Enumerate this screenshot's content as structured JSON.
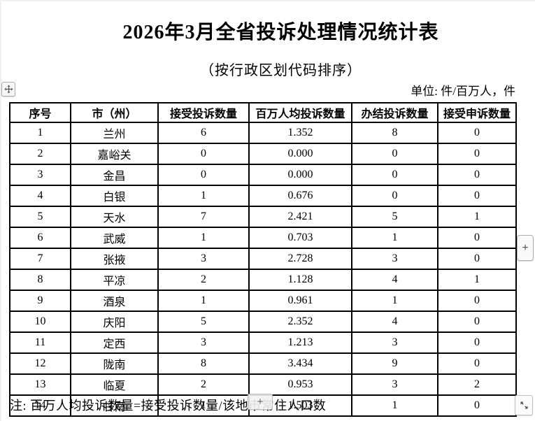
{
  "page": {
    "title": "2026年3月全省投诉处理情况统计表",
    "subtitle": "（按行政区划代码排序）",
    "unit_label": "单位: 件/百万人，件",
    "note": "注: 百万人均投诉数量=接受投诉数量/该地市常住人口数"
  },
  "table": {
    "headers": [
      "序号",
      "市（州）",
      "接受投诉数量",
      "百万人均投诉数量",
      "办结投诉数量",
      "接受申诉数量"
    ],
    "rows": [
      [
        "1",
        "兰州",
        "6",
        "1.352",
        "8",
        "0"
      ],
      [
        "2",
        "嘉峪关",
        "0",
        "0.000",
        "0",
        "0"
      ],
      [
        "3",
        "金昌",
        "0",
        "0.000",
        "0",
        "0"
      ],
      [
        "4",
        "白银",
        "1",
        "0.676",
        "0",
        "0"
      ],
      [
        "5",
        "天水",
        "7",
        "2.421",
        "5",
        "1"
      ],
      [
        "6",
        "武威",
        "1",
        "0.703",
        "1",
        "0"
      ],
      [
        "7",
        "张掖",
        "3",
        "2.728",
        "3",
        "0"
      ],
      [
        "8",
        "平凉",
        "2",
        "1.128",
        "4",
        "1"
      ],
      [
        "9",
        "酒泉",
        "1",
        "0.961",
        "1",
        "0"
      ],
      [
        "10",
        "庆阳",
        "5",
        "2.352",
        "4",
        "0"
      ],
      [
        "11",
        "定西",
        "3",
        "1.213",
        "3",
        "0"
      ],
      [
        "12",
        "陇南",
        "8",
        "3.434",
        "9",
        "0"
      ],
      [
        "13",
        "临夏",
        "2",
        "0.953",
        "3",
        "2"
      ],
      [
        "14",
        "甘南",
        "1",
        "1.503",
        "1",
        "0"
      ]
    ]
  },
  "handles": {
    "insert_plus": "+",
    "side_plus": "+"
  },
  "colors": {
    "text": "#000000",
    "table_border": "#000000",
    "handle_bg": "#f6f6f6",
    "handle_border": "#adadad",
    "page_bg": "#ffffff"
  }
}
